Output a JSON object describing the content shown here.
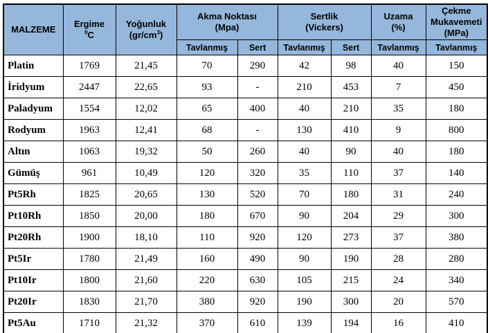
{
  "table": {
    "headers": {
      "material": "MALZEME",
      "melting": {
        "title": "Ergime",
        "degree_sup": "0",
        "degree_unit": "C"
      },
      "density": {
        "title": "Yoğunluk",
        "unit_pre": "(gr/cm",
        "unit_sup": "3",
        "unit_post": ")"
      },
      "yield_point": {
        "title": "Akma Noktası",
        "unit": "(Mpa)"
      },
      "hardness": {
        "title": "Sertlik",
        "unit": "(Vickers)"
      },
      "elongation": {
        "title": "Uzama",
        "unit": "(%)"
      },
      "tensile": {
        "title": "Çekme Mukavemeti",
        "unit": "(MPa)"
      }
    },
    "subheaders": [
      "Tavlanmış",
      "Sert",
      "Tavlanmış",
      "Sert",
      "Tavlanmış",
      "Tavlanmış"
    ],
    "rows": [
      {
        "material": "Platin",
        "values": [
          "1769",
          "21,45",
          "70",
          "290",
          "42",
          "98",
          "40",
          "150"
        ]
      },
      {
        "material": "İridyum",
        "values": [
          "2447",
          "22,65",
          "93",
          "-",
          "210",
          "453",
          "7",
          "450"
        ]
      },
      {
        "material": "Paladyum",
        "values": [
          "1554",
          "12,02",
          "65",
          "400",
          "40",
          "210",
          "35",
          "180"
        ]
      },
      {
        "material": "Rodyum",
        "values": [
          "1963",
          "12,41",
          "68",
          "-",
          "130",
          "410",
          "9",
          "800"
        ]
      },
      {
        "material": "Altın",
        "values": [
          "1063",
          "19,32",
          "50",
          "260",
          "40",
          "90",
          "40",
          "180"
        ]
      },
      {
        "material": "Gümüş",
        "values": [
          "961",
          "10,49",
          "120",
          "320",
          "35",
          "110",
          "37",
          "140"
        ]
      },
      {
        "material": "Pt5Rh",
        "values": [
          "1825",
          "20,65",
          "130",
          "520",
          "70",
          "180",
          "31",
          "240"
        ]
      },
      {
        "material": "Pt10Rh",
        "values": [
          "1850",
          "20,00",
          "180",
          "670",
          "90",
          "204",
          "29",
          "300"
        ]
      },
      {
        "material": "Pt20Rh",
        "values": [
          "1900",
          "18,10",
          "110",
          "920",
          "120",
          "273",
          "37",
          "380"
        ]
      },
      {
        "material": "Pt5Ir",
        "values": [
          "1780",
          "21,49",
          "160",
          "490",
          "90",
          "190",
          "28",
          "280"
        ]
      },
      {
        "material": "Pt10Ir",
        "values": [
          "1800",
          "21,60",
          "220",
          "630",
          "105",
          "215",
          "24",
          "340"
        ]
      },
      {
        "material": "Pt20Ir",
        "values": [
          "1830",
          "21,70",
          "380",
          "920",
          "190",
          "300",
          "20",
          "570"
        ]
      },
      {
        "material": "Pt5Au",
        "values": [
          "1710",
          "21,32",
          "370",
          "610",
          "139",
          "194",
          "16",
          "410"
        ]
      }
    ],
    "colors": {
      "header_bg": "#95B7DC",
      "border": "#000000",
      "text": "#000000"
    }
  }
}
